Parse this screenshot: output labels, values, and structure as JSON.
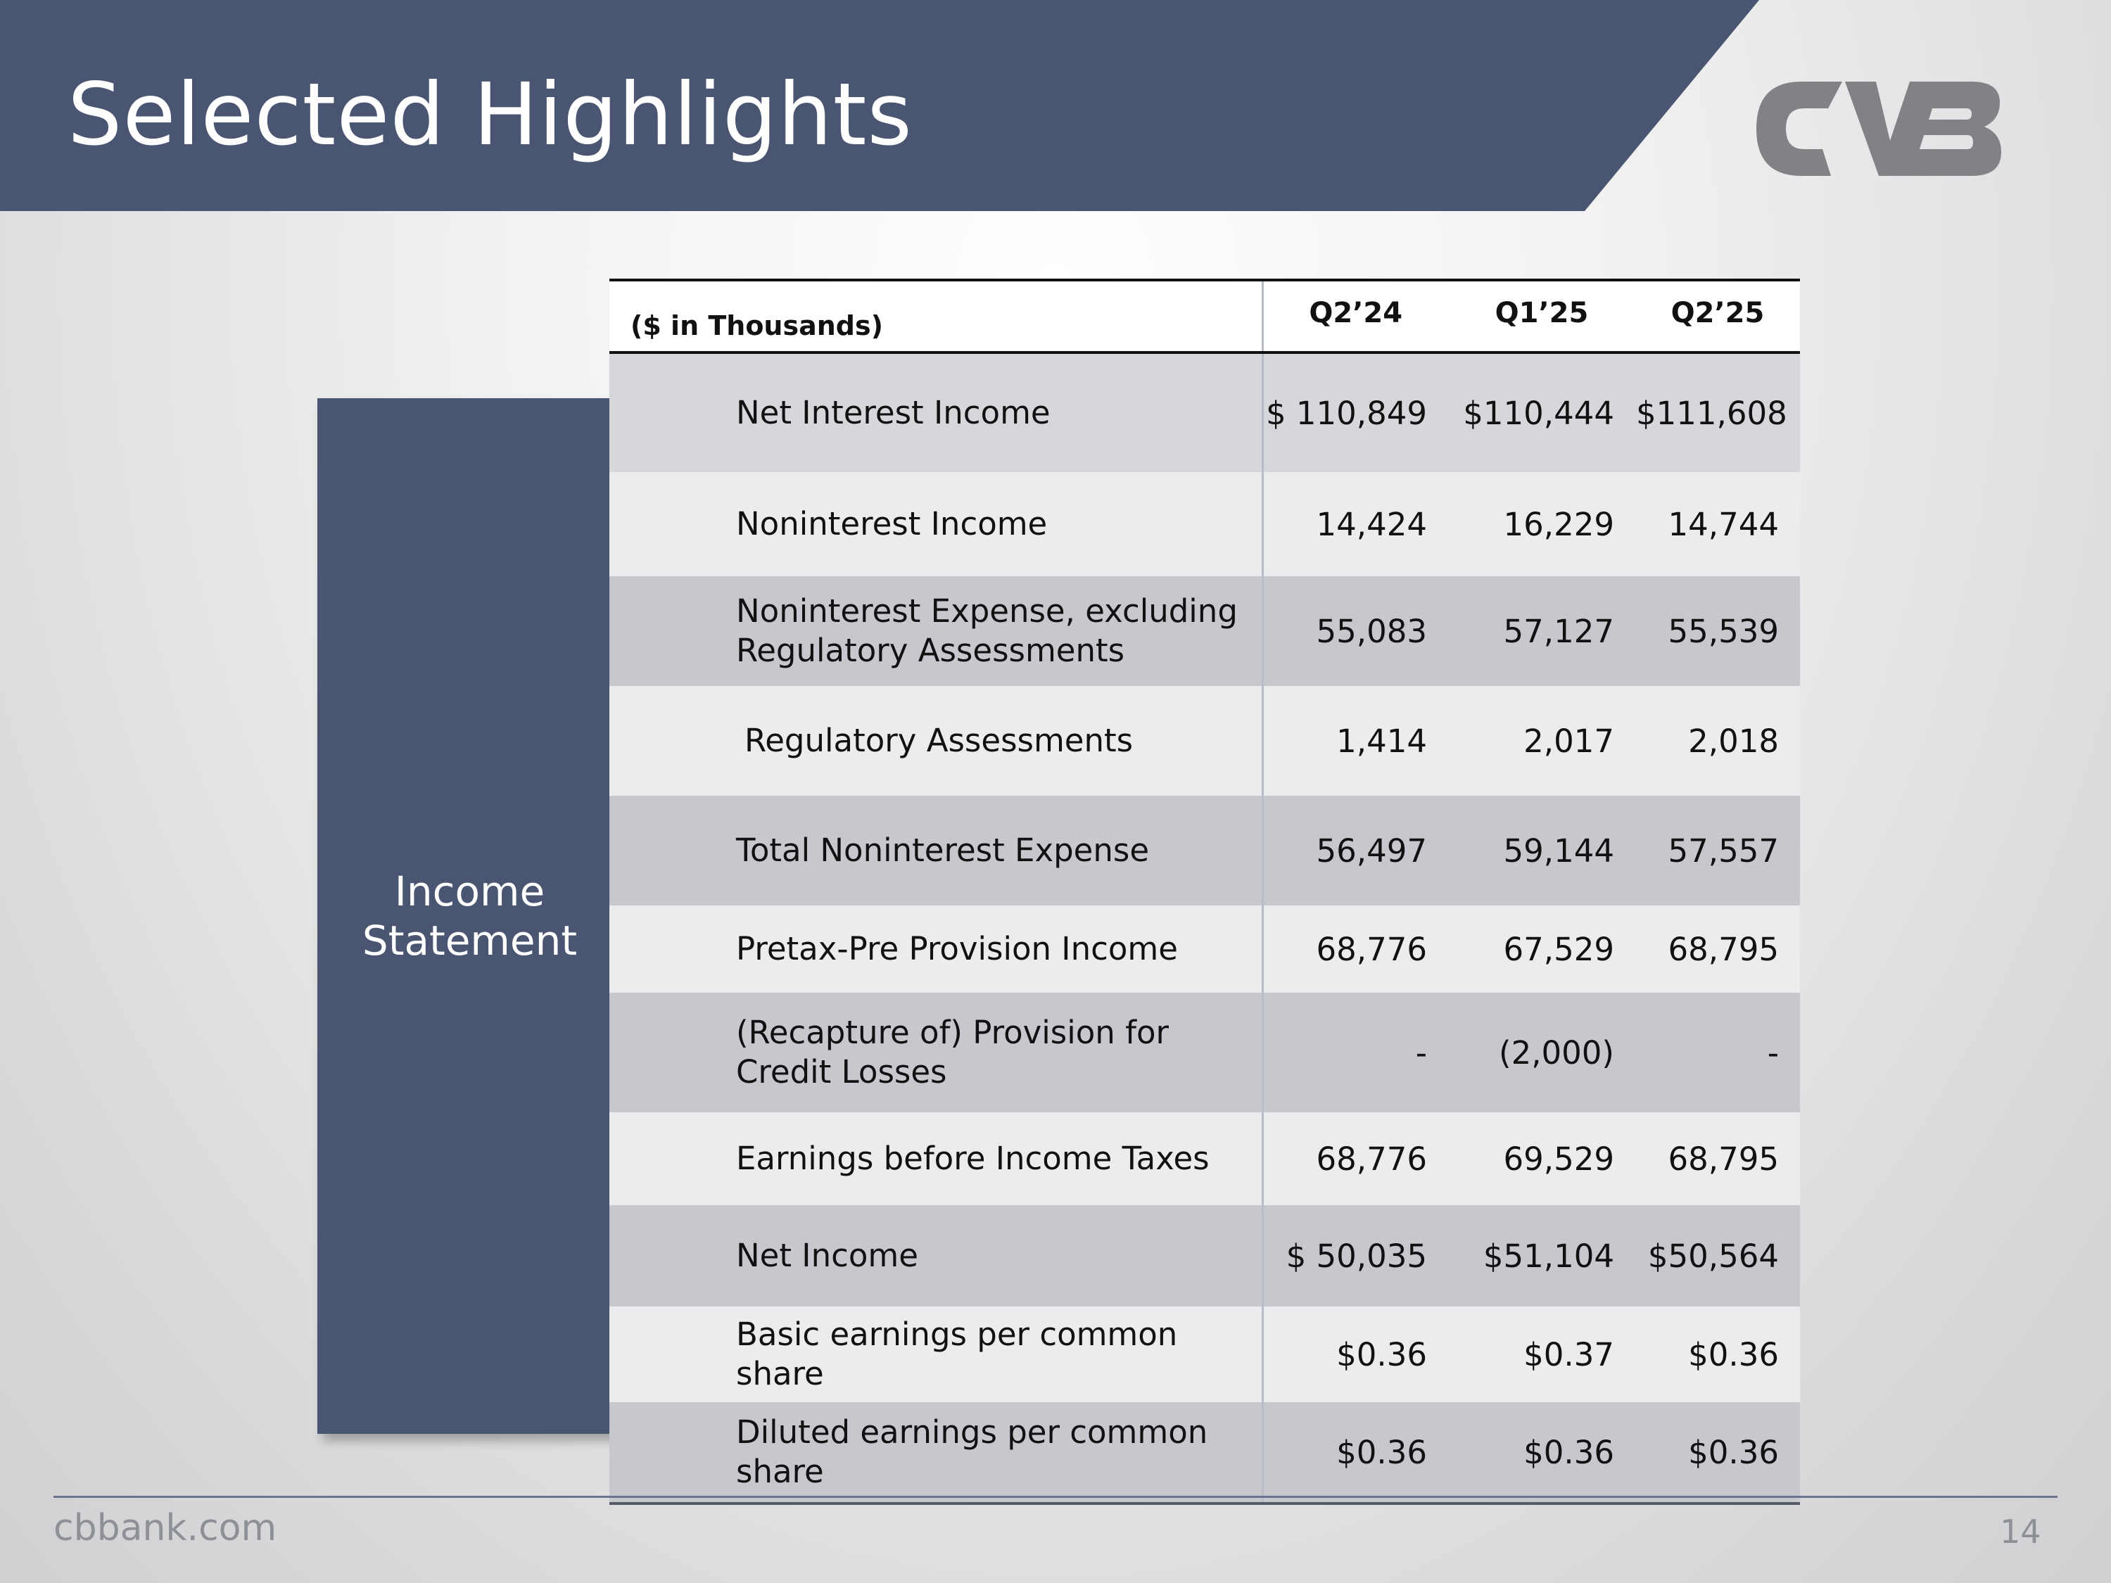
{
  "slide": {
    "title": "Selected Highlights",
    "section_label": "Income Statement",
    "footer_url": "cbbank.com",
    "page_number": "14"
  },
  "colors": {
    "header_band": "#4a5671",
    "side_panel": "#4a5671",
    "logo": "#808285"
  },
  "icons": {
    "logo": "cvb-logo-icon"
  },
  "table": {
    "units_label": "($ in Thousands)",
    "columns": [
      "Q2’24",
      "Q1’25",
      "Q2’25"
    ],
    "rows": [
      {
        "label": "Net Interest Income",
        "values": [
          "$ 110,849",
          "$110,444",
          "$111,608"
        ],
        "shade": "mid",
        "height": 170
      },
      {
        "label": "Noninterest Income",
        "values": [
          "14,424",
          "16,229",
          "14,744"
        ],
        "shade": "light",
        "height": 148
      },
      {
        "label": "Noninterest Expense, excluding Regulatory Assessments",
        "values": [
          "55,083",
          "57,127",
          "55,539"
        ],
        "shade": "dark",
        "height": 156
      },
      {
        "label": "Regulatory Assessments",
        "values": [
          "1,414",
          "2,017",
          "2,018"
        ],
        "shade": "light",
        "height": 156,
        "indent": true
      },
      {
        "label": "Total Noninterest Expense",
        "values": [
          "56,497",
          "59,144",
          "57,557"
        ],
        "shade": "dark",
        "height": 156
      },
      {
        "label": "Pretax-Pre Provision Income",
        "values": [
          "68,776",
          "67,529",
          "68,795"
        ],
        "shade": "light",
        "height": 124
      },
      {
        "label": "(Recapture of) Provision for Credit Losses",
        "values": [
          "-",
          "(2,000)",
          "-"
        ],
        "shade": "dark",
        "height": 170
      },
      {
        "label": "Earnings before Income Taxes",
        "values": [
          "68,776",
          "69,529",
          "68,795"
        ],
        "shade": "light",
        "height": 132
      },
      {
        "label": "Net Income",
        "values": [
          "$  50,035",
          "$51,104",
          "$50,564"
        ],
        "shade": "dark",
        "height": 144
      },
      {
        "label": "Basic earnings per common share",
        "values": [
          "$0.36",
          "$0.37",
          "$0.36"
        ],
        "shade": "light",
        "height": 136
      },
      {
        "label": "Diluted earnings per common share",
        "values": [
          "$0.36",
          "$0.36",
          "$0.36"
        ],
        "shade": "dark",
        "height": 144
      }
    ]
  }
}
